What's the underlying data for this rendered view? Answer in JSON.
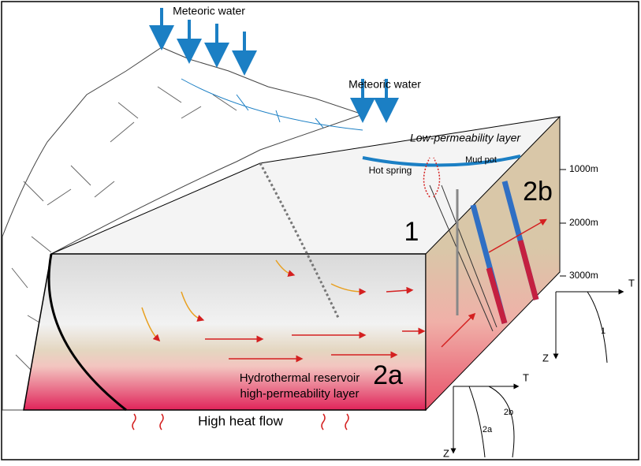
{
  "meteoric_water": [
    "Meteoric water",
    "Meteoric water"
  ],
  "layers": {
    "low_permeability": "Low-permeability layer",
    "reservoir": [
      "Hydrothermal reservoir",
      "high-permeability layer"
    ]
  },
  "features": {
    "mud_pot": "Mud pot",
    "hot_spring": "Hot spring"
  },
  "depth_scale": [
    "1000m",
    "2000m",
    "3000m"
  ],
  "zones": [
    "1",
    "2a",
    "2b"
  ],
  "heat": "High heat flow",
  "profiles": [
    {
      "x_axis": "T",
      "y_axis": "Z",
      "curves": [
        "1"
      ]
    },
    {
      "x_axis": "T",
      "y_axis": "Z",
      "curves": [
        "2a",
        "2b"
      ]
    }
  ]
}
